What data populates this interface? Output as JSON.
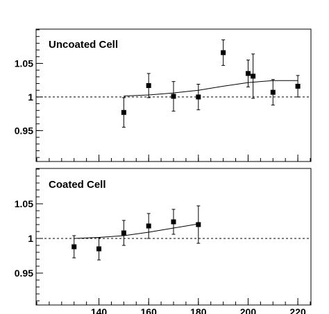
{
  "chart_data": [
    {
      "type": "scatter",
      "title": "Uncoated Cell",
      "xlabel": "",
      "ylabel": "",
      "xlim": [
        115,
        225
      ],
      "ylim": [
        0.905,
        1.1
      ],
      "reference_y": 1,
      "xticks_major": [
        140,
        160,
        180,
        200,
        220
      ],
      "xticks_minor_step": 5,
      "yticks_major": [
        0.95,
        1,
        1.05
      ],
      "ytick_labels": [
        "0.95",
        "1",
        "1.05"
      ],
      "yticks_minor_step": 0.01,
      "grid": false,
      "points": [
        {
          "x": 150,
          "y": 0.977,
          "err": 0.022
        },
        {
          "x": 160,
          "y": 1.017,
          "err": 0.018
        },
        {
          "x": 170,
          "y": 1.001,
          "err": 0.022
        },
        {
          "x": 180,
          "y": 1.0,
          "err": 0.019
        },
        {
          "x": 190,
          "y": 1.066,
          "err": 0.019
        },
        {
          "x": 200,
          "y": 1.035,
          "err": 0.02
        },
        {
          "x": 202,
          "y": 1.031,
          "err": 0.033
        },
        {
          "x": 210,
          "y": 1.007,
          "err": 0.019
        },
        {
          "x": 220,
          "y": 1.016,
          "err": 0.016
        }
      ],
      "fit_curve": [
        {
          "x": 150,
          "y": 1.0015
        },
        {
          "x": 160,
          "y": 1.003
        },
        {
          "x": 170,
          "y": 1.006
        },
        {
          "x": 180,
          "y": 1.01
        },
        {
          "x": 190,
          "y": 1.016
        },
        {
          "x": 200,
          "y": 1.0215
        },
        {
          "x": 210,
          "y": 1.0245
        },
        {
          "x": 220,
          "y": 1.0245
        }
      ]
    },
    {
      "type": "scatter",
      "title": "Coated Cell",
      "xlabel": "",
      "ylabel": "",
      "xlim": [
        115,
        225
      ],
      "ylim": [
        0.905,
        1.1
      ],
      "reference_y": 1,
      "xticks_major": [
        140,
        160,
        180,
        200,
        220
      ],
      "xtick_labels": [
        "140",
        "160",
        "180",
        "200",
        "220"
      ],
      "xticks_minor_step": 5,
      "yticks_major": [
        0.95,
        1,
        1.05
      ],
      "ytick_labels": [
        "0.95",
        "1",
        "1.05"
      ],
      "yticks_minor_step": 0.01,
      "grid": false,
      "points": [
        {
          "x": 130,
          "y": 0.988,
          "err": 0.016
        },
        {
          "x": 140,
          "y": 0.985,
          "err": 0.016
        },
        {
          "x": 150,
          "y": 1.008,
          "err": 0.018
        },
        {
          "x": 160,
          "y": 1.018,
          "err": 0.018
        },
        {
          "x": 170,
          "y": 1.024,
          "err": 0.018
        },
        {
          "x": 180,
          "y": 1.02,
          "err": 0.027
        }
      ],
      "fit_curve": [
        {
          "x": 130,
          "y": 1.0
        },
        {
          "x": 140,
          "y": 1.0015
        },
        {
          "x": 150,
          "y": 1.004
        },
        {
          "x": 160,
          "y": 1.009
        },
        {
          "x": 170,
          "y": 1.015
        },
        {
          "x": 180,
          "y": 1.021
        }
      ]
    }
  ]
}
